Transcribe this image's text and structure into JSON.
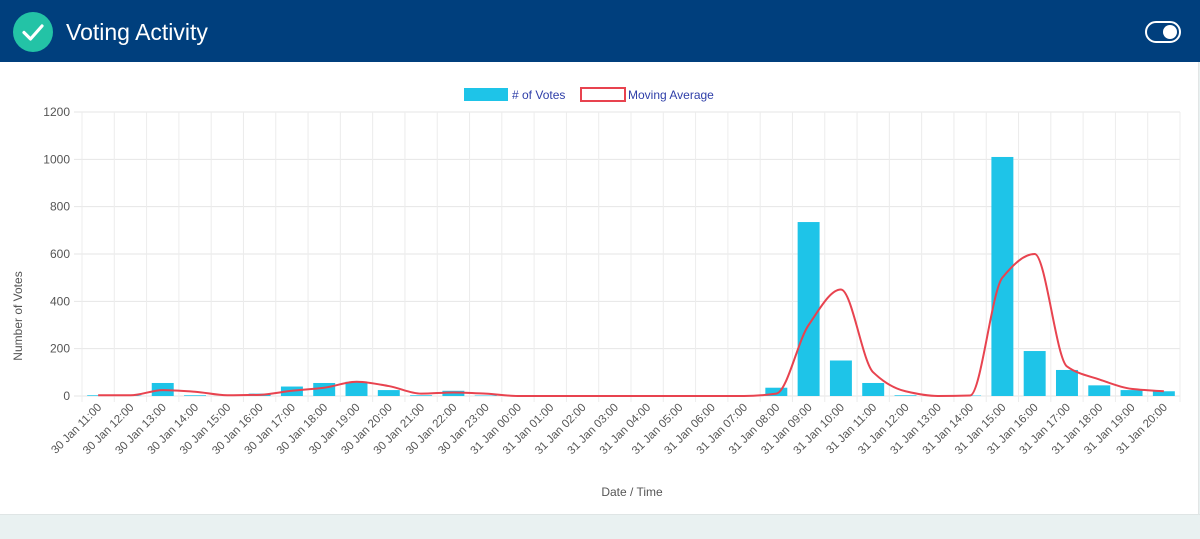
{
  "header": {
    "title": "Voting Activity",
    "check_icon": "checkmark-circle-icon",
    "toggle_icon": "toggle-switch-icon",
    "toggle_on": true
  },
  "colors": {
    "header_bg": "#003f7d",
    "accent_teal": "#23c3a6",
    "bar": "#1ec4e8",
    "line": "#e8434f"
  },
  "chart_data": {
    "type": "bar",
    "title": "",
    "xlabel": "Date / Time",
    "ylabel": "Number of Votes",
    "ylim": [
      0,
      1200
    ],
    "yticks": [
      0,
      200,
      400,
      600,
      800,
      1000,
      1200
    ],
    "grid": true,
    "legend_position": "top-center",
    "categories": [
      "30 Jan 11:00",
      "30 Jan 12:00",
      "30 Jan 13:00",
      "30 Jan 14:00",
      "30 Jan 15:00",
      "30 Jan 16:00",
      "30 Jan 17:00",
      "30 Jan 18:00",
      "30 Jan 19:00",
      "30 Jan 20:00",
      "30 Jan 21:00",
      "30 Jan 22:00",
      "30 Jan 23:00",
      "31 Jan 00:00",
      "31 Jan 01:00",
      "31 Jan 02:00",
      "31 Jan 03:00",
      "31 Jan 04:00",
      "31 Jan 05:00",
      "31 Jan 06:00",
      "31 Jan 07:00",
      "31 Jan 08:00",
      "31 Jan 09:00",
      "31 Jan 10:00",
      "31 Jan 11:00",
      "31 Jan 12:00",
      "31 Jan 13:00",
      "31 Jan 14:00",
      "31 Jan 15:00",
      "31 Jan 16:00",
      "31 Jan 17:00",
      "31 Jan 18:00",
      "31 Jan 19:00",
      "31 Jan 20:00"
    ],
    "series": [
      {
        "name": "# of Votes",
        "type": "bar",
        "values": [
          3,
          2,
          55,
          3,
          0,
          10,
          40,
          55,
          60,
          25,
          3,
          22,
          2,
          0,
          0,
          0,
          0,
          0,
          0,
          0,
          0,
          35,
          735,
          150,
          55,
          3,
          0,
          2,
          1010,
          190,
          110,
          45,
          25,
          20
        ]
      },
      {
        "name": "Moving Average",
        "type": "line",
        "values": [
          3,
          3,
          25,
          18,
          3,
          5,
          22,
          35,
          60,
          42,
          10,
          15,
          10,
          0,
          0,
          0,
          0,
          0,
          0,
          0,
          0,
          10,
          300,
          450,
          100,
          20,
          0,
          2,
          500,
          600,
          125,
          70,
          30,
          20
        ]
      }
    ]
  }
}
